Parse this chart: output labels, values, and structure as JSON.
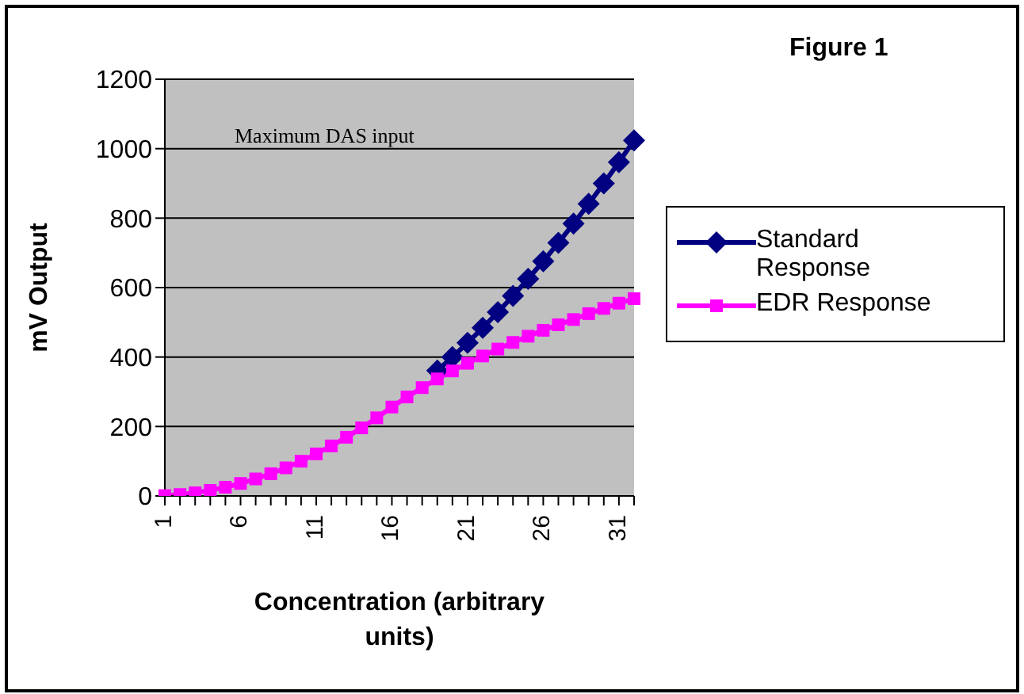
{
  "chart_data": {
    "type": "line",
    "title": "Figure 1",
    "xlabel": "Concentration (arbitrary units)",
    "ylabel": "mV Output",
    "categories": [
      "1",
      null,
      null,
      null,
      null,
      "6",
      null,
      null,
      null,
      null,
      "11",
      null,
      null,
      null,
      null,
      "16",
      null,
      null,
      null,
      null,
      "21",
      null,
      null,
      null,
      null,
      "26",
      null,
      null,
      null,
      null,
      "31",
      null
    ],
    "series": [
      {
        "name": "Standard Response",
        "color": "#000080",
        "marker": "diamond",
        "values": [
          null,
          null,
          null,
          null,
          null,
          null,
          null,
          null,
          null,
          null,
          null,
          null,
          null,
          null,
          null,
          null,
          null,
          null,
          361,
          400,
          441,
          484,
          529,
          576,
          625,
          676,
          729,
          784,
          841,
          900,
          961,
          1024
        ]
      },
      {
        "name": "EDR Response",
        "color": "#ff00ff",
        "marker": "square",
        "values": [
          1,
          4,
          9,
          16,
          25,
          36,
          49,
          64,
          81,
          100,
          121,
          144,
          169,
          196,
          225,
          256,
          285,
          312,
          337,
          360,
          382,
          403,
          423,
          442,
          460,
          477,
          493,
          508,
          525,
          540,
          555,
          568
        ]
      }
    ],
    "ylim": [
      0,
      1200
    ],
    "yticks": [
      0,
      200,
      400,
      600,
      800,
      1000,
      1200
    ],
    "annotations": [
      "Maximum DAS input"
    ],
    "grid": "y",
    "legend": "right",
    "line_style": "solid"
  }
}
